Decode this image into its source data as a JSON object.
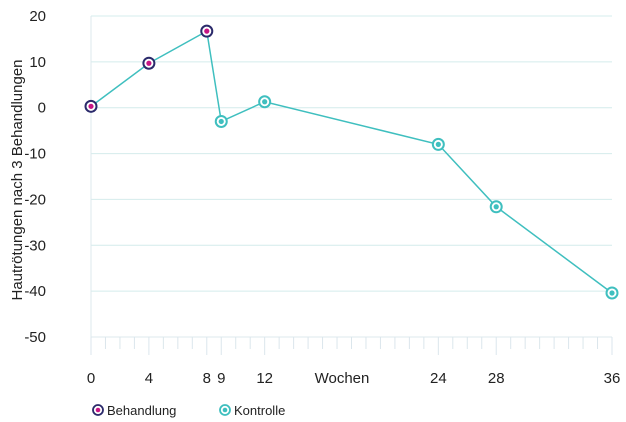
{
  "chart_data": {
    "type": "line",
    "ylabel": "Hautrötungen nach 3 Behandlungen",
    "xlabel": "Wochen",
    "ylim": [
      -50,
      20
    ],
    "xlim": [
      0,
      36
    ],
    "y_ticks": [
      20,
      10,
      0,
      -10,
      -20,
      -30,
      -40,
      -50
    ],
    "y_tick_labels": [
      "20",
      "10",
      "0",
      "-10",
      "-20",
      "-30",
      "-40",
      "-50"
    ],
    "x_ticks": [
      0,
      4,
      8,
      9,
      12,
      24,
      28,
      36
    ],
    "x_tick_labels": [
      "0",
      "4",
      "8",
      "9",
      "12",
      "24",
      "28",
      "36"
    ],
    "grid": "horizontal",
    "legend_position": "bottom-left",
    "line_color": "#3fbfbf",
    "series": [
      {
        "name": "Behandlung",
        "marker_fill": "#c71585",
        "marker_ring": "#2b2a6b",
        "points": [
          {
            "x": 0,
            "y": 0.3
          },
          {
            "x": 4,
            "y": 9.7
          },
          {
            "x": 8,
            "y": 16.7
          }
        ]
      },
      {
        "name": "Kontrolle",
        "marker_fill": "#3fbfbf",
        "marker_ring": "#3fbfbf",
        "points": [
          {
            "x": 9,
            "y": -3
          },
          {
            "x": 12,
            "y": 1.3
          },
          {
            "x": 24,
            "y": -8
          },
          {
            "x": 28,
            "y": -21.6
          },
          {
            "x": 36,
            "y": -40.4
          }
        ]
      }
    ]
  }
}
